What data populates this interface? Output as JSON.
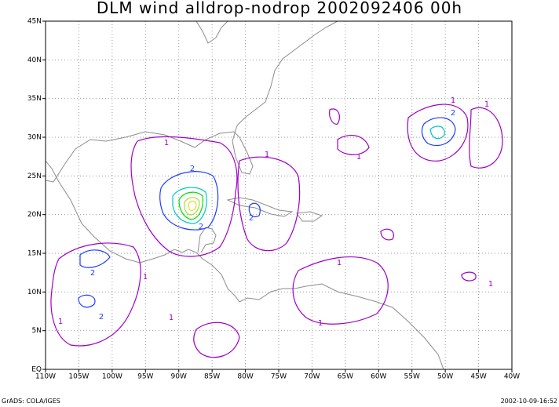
{
  "map": {
    "title": "DLM wind alldrop-nodrop 2002092406 00h",
    "footer_left": "GrADS: COLA/IGES",
    "footer_right": "2002-10-09-16:52",
    "xlim": [
      -110,
      -40
    ],
    "ylim": [
      0,
      45
    ],
    "xticks": [
      {
        "value": -110,
        "label": "110W"
      },
      {
        "value": -105,
        "label": "105W"
      },
      {
        "value": -100,
        "label": "100W"
      },
      {
        "value": -95,
        "label": "95W"
      },
      {
        "value": -90,
        "label": "90W"
      },
      {
        "value": -85,
        "label": "85W"
      },
      {
        "value": -80,
        "label": "80W"
      },
      {
        "value": -75,
        "label": "75W"
      },
      {
        "value": -70,
        "label": "70W"
      },
      {
        "value": -65,
        "label": "65W"
      },
      {
        "value": -60,
        "label": "60W"
      },
      {
        "value": -55,
        "label": "55W"
      },
      {
        "value": -50,
        "label": "50W"
      },
      {
        "value": -45,
        "label": "45W"
      },
      {
        "value": -40,
        "label": "40W"
      }
    ],
    "yticks": [
      {
        "value": 0,
        "label": "EQ"
      },
      {
        "value": 5,
        "label": "5N"
      },
      {
        "value": 10,
        "label": "10N"
      },
      {
        "value": 15,
        "label": "15N"
      },
      {
        "value": 20,
        "label": "20N"
      },
      {
        "value": 25,
        "label": "25N"
      },
      {
        "value": 30,
        "label": "30N"
      },
      {
        "value": 35,
        "label": "35N"
      },
      {
        "value": 40,
        "label": "40N"
      },
      {
        "value": 45,
        "label": "45N"
      }
    ],
    "grid": true,
    "contour_levels": [
      {
        "value": 1,
        "color": "#a000c8"
      },
      {
        "value": 2,
        "color": "#1e3cff"
      },
      {
        "value": 3,
        "color": "#00c8c8"
      },
      {
        "value": 4,
        "color": "#00dc00"
      },
      {
        "value": 5,
        "color": "#a0e632"
      },
      {
        "value": 6,
        "color": "#e6dc32"
      }
    ]
  }
}
